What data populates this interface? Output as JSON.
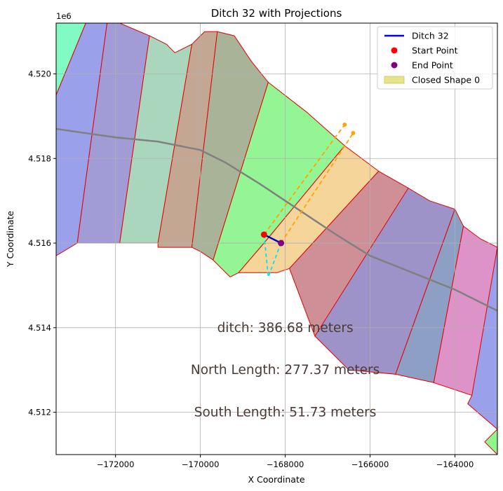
{
  "chart_data": {
    "type": "line",
    "title": "Ditch 32 with Projections",
    "xlabel": "X Coordinate",
    "ylabel": "Y Coordinate",
    "y_offset_label": "1e6",
    "xlim": [
      -173400,
      -163000
    ],
    "ylim": [
      4511000,
      4521200
    ],
    "x_ticks": [
      -172000,
      -170000,
      -168000,
      -166000,
      -164000
    ],
    "x_tick_labels": [
      "−172000",
      "−170000",
      "−168000",
      "−166000",
      "−164000"
    ],
    "y_ticks": [
      4512000,
      4514000,
      4516000,
      4518000,
      4520000
    ],
    "y_tick_labels": [
      "4.512",
      "4.514",
      "4.516",
      "4.518",
      "4.520"
    ],
    "grid": true,
    "legend_position": "upper right",
    "legend": [
      {
        "label": "Ditch 32",
        "kind": "line",
        "color": "#0000ff"
      },
      {
        "label": "Start Point",
        "kind": "dot",
        "color": "#ff0000"
      },
      {
        "label": "End Point",
        "kind": "dot",
        "color": "#800080"
      },
      {
        "label": "Closed Shape 0",
        "kind": "patch",
        "color": "#e5e38c"
      }
    ],
    "strips": [
      {
        "color": "#7ffbc3",
        "points": [
          [
            -173400,
            4521200
          ],
          [
            -172700,
            4521200
          ],
          [
            -173400,
            4519500
          ]
        ]
      },
      {
        "color": "#9aa0ea",
        "points": [
          [
            -173400,
            4519500
          ],
          [
            -172700,
            4521200
          ],
          [
            -172200,
            4521200
          ],
          [
            -172900,
            4516000
          ],
          [
            -173400,
            4515700
          ]
        ]
      },
      {
        "color": "#a29cd6",
        "points": [
          [
            -172200,
            4521200
          ],
          [
            -171900,
            4521200
          ],
          [
            -171200,
            4520900
          ],
          [
            -171900,
            4516000
          ],
          [
            -172900,
            4516000
          ]
        ]
      },
      {
        "color": "#aad6bd",
        "points": [
          [
            -171200,
            4520900
          ],
          [
            -170800,
            4520700
          ],
          [
            -170600,
            4520500
          ],
          [
            -170200,
            4520700
          ],
          [
            -171000,
            4516000
          ],
          [
            -171300,
            4516000
          ],
          [
            -171900,
            4516000
          ]
        ]
      },
      {
        "color": "#c3a792",
        "points": [
          [
            -170200,
            4520700
          ],
          [
            -170000,
            4520900
          ],
          [
            -169900,
            4521000
          ],
          [
            -169600,
            4521000
          ],
          [
            -170200,
            4515900
          ],
          [
            -171000,
            4515900
          ],
          [
            -171000,
            4516000
          ]
        ]
      },
      {
        "color": "#a8b397",
        "points": [
          [
            -169600,
            4521000
          ],
          [
            -169200,
            4520900
          ],
          [
            -168800,
            4520300
          ],
          [
            -168400,
            4519800
          ],
          [
            -169700,
            4515600
          ],
          [
            -170000,
            4515800
          ],
          [
            -170200,
            4515900
          ]
        ]
      },
      {
        "color": "#93f593",
        "points": [
          [
            -168400,
            4519800
          ],
          [
            -167500,
            4519100
          ],
          [
            -166600,
            4518300
          ],
          [
            -168500,
            4516000
          ],
          [
            -169100,
            4515300
          ],
          [
            -169300,
            4515200
          ],
          [
            -169700,
            4515600
          ]
        ]
      },
      {
        "color": "#f5d59a",
        "points": [
          [
            -166600,
            4518300
          ],
          [
            -165800,
            4517700
          ],
          [
            -167900,
            4515400
          ],
          [
            -168200,
            4515300
          ],
          [
            -169100,
            4515300
          ],
          [
            -168500,
            4516000
          ]
        ]
      },
      {
        "color": "#cf8f97",
        "points": [
          [
            -165800,
            4517700
          ],
          [
            -165100,
            4517300
          ],
          [
            -166300,
            4514700
          ],
          [
            -167300,
            4513800
          ],
          [
            -167900,
            4515400
          ]
        ]
      },
      {
        "color": "#9e93c8",
        "points": [
          [
            -165100,
            4517300
          ],
          [
            -164600,
            4517000
          ],
          [
            -164000,
            4516800
          ],
          [
            -165400,
            4512900
          ],
          [
            -166500,
            4513000
          ],
          [
            -167300,
            4513800
          ]
        ]
      },
      {
        "color": "#8e9fc5",
        "points": [
          [
            -164000,
            4516800
          ],
          [
            -163800,
            4516400
          ],
          [
            -164500,
            4512700
          ],
          [
            -165400,
            4512900
          ]
        ]
      },
      {
        "color": "#dd93c8",
        "points": [
          [
            -163800,
            4516400
          ],
          [
            -163400,
            4516100
          ],
          [
            -163000,
            4515900
          ],
          [
            -163000,
            4512600
          ],
          [
            -163600,
            4512400
          ],
          [
            -164500,
            4512700
          ]
        ]
      },
      {
        "color": "#9aa0ea",
        "points": [
          [
            -163000,
            4515900
          ],
          [
            -163000,
            4511600
          ],
          [
            -163700,
            4512200
          ],
          [
            -163600,
            4512400
          ]
        ]
      },
      {
        "color": "#8ff58f",
        "points": [
          [
            -163000,
            4511600
          ],
          [
            -163000,
            4511000
          ],
          [
            -163300,
            4511300
          ]
        ]
      }
    ],
    "ditch_path": [
      [
        -173400,
        4518700
      ],
      [
        -172000,
        4518500
      ],
      [
        -171000,
        4518400
      ],
      [
        -170000,
        4518200
      ],
      [
        -169400,
        4517900
      ],
      [
        -168600,
        4517400
      ],
      [
        -167700,
        4516800
      ],
      [
        -166800,
        4516200
      ],
      [
        -166000,
        4515700
      ],
      [
        -165000,
        4515300
      ],
      [
        -164000,
        4514900
      ],
      [
        -163000,
        4514400
      ]
    ],
    "projection_north": [
      [
        [
          -168500,
          4516200
        ],
        [
          -166600,
          4518800
        ]
      ],
      [
        [
          -168100,
          4516000
        ],
        [
          -166400,
          4518600
        ]
      ]
    ],
    "projection_south": [
      [
        [
          -168500,
          4516200
        ],
        [
          -168400,
          4515200
        ]
      ],
      [
        [
          -168100,
          4516000
        ],
        [
          -168400,
          4515200
        ]
      ]
    ],
    "ditch_segment": [
      [
        -168500,
        4516200
      ],
      [
        -168100,
        4516000
      ]
    ],
    "start_point": [
      -168500,
      4516200
    ],
    "end_point": [
      -168100,
      4516000
    ],
    "annotations": [
      {
        "text": "ditch: 386.68 meters",
        "x": -168000,
        "y": 4514000
      },
      {
        "text": "North Length: 277.37 meters",
        "x": -168000,
        "y": 4513000
      },
      {
        "text": "South Length: 51.73 meters",
        "x": -168000,
        "y": 4512000
      }
    ]
  }
}
